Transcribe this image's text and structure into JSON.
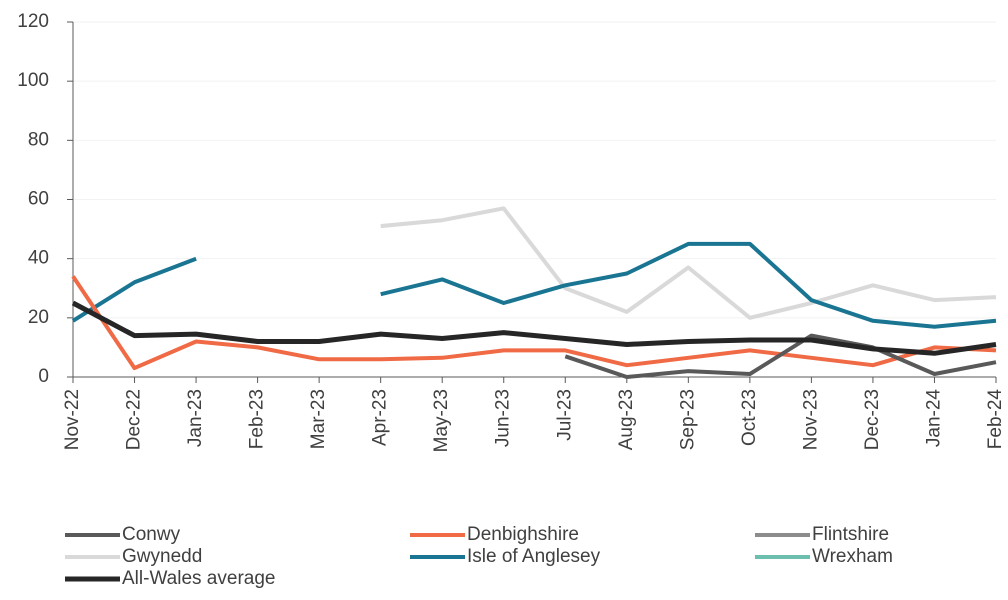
{
  "chart_data": {
    "type": "line",
    "categories": [
      "Nov-22",
      "Dec-22",
      "Jan-23",
      "Feb-23",
      "Mar-23",
      "Apr-23",
      "May-23",
      "Jun-23",
      "Jul-23",
      "Aug-23",
      "Sep-23",
      "Oct-23",
      "Nov-23",
      "Dec-23",
      "Jan-24",
      "Feb-24"
    ],
    "series": [
      {
        "name": "Conwy",
        "color": "#595959",
        "values": [
          null,
          null,
          null,
          null,
          null,
          null,
          null,
          null,
          7,
          0,
          2,
          1,
          14,
          10,
          1,
          5
        ]
      },
      {
        "name": "Denbighshire",
        "color": "#ef6a45",
        "values": [
          34,
          3,
          12,
          10,
          6,
          6,
          6.5,
          9,
          9,
          4,
          6.5,
          9,
          6.5,
          4,
          10,
          9
        ]
      },
      {
        "name": "Flintshire",
        "color": "#8c8c8c",
        "values": [
          null,
          null,
          null,
          null,
          null,
          null,
          null,
          null,
          null,
          null,
          null,
          null,
          null,
          null,
          null,
          null
        ]
      },
      {
        "name": "Gwynedd",
        "color": "#d9d9d9",
        "values": [
          null,
          null,
          null,
          null,
          null,
          51,
          53,
          57,
          30,
          22,
          37,
          20,
          25,
          31,
          26,
          27
        ]
      },
      {
        "name": "Isle of Anglesey",
        "color": "#1a7593",
        "values": [
          19,
          32,
          40,
          null,
          null,
          28,
          33,
          25,
          31,
          35,
          45,
          45,
          26,
          19,
          17,
          19
        ]
      },
      {
        "name": "Wrexham",
        "color": "#6cbfae",
        "values": [
          null,
          null,
          null,
          null,
          null,
          null,
          null,
          null,
          null,
          null,
          null,
          null,
          null,
          null,
          null,
          null
        ]
      },
      {
        "name": "All-Wales average",
        "color": "#262626",
        "values": [
          25,
          14,
          14.5,
          12,
          12,
          14.5,
          13,
          15,
          13,
          11,
          12,
          12.5,
          12.5,
          9.5,
          8,
          11
        ]
      }
    ],
    "ylim": [
      0,
      120
    ],
    "yticks": [
      0,
      20,
      40,
      60,
      80,
      100,
      120
    ],
    "grid": true
  }
}
